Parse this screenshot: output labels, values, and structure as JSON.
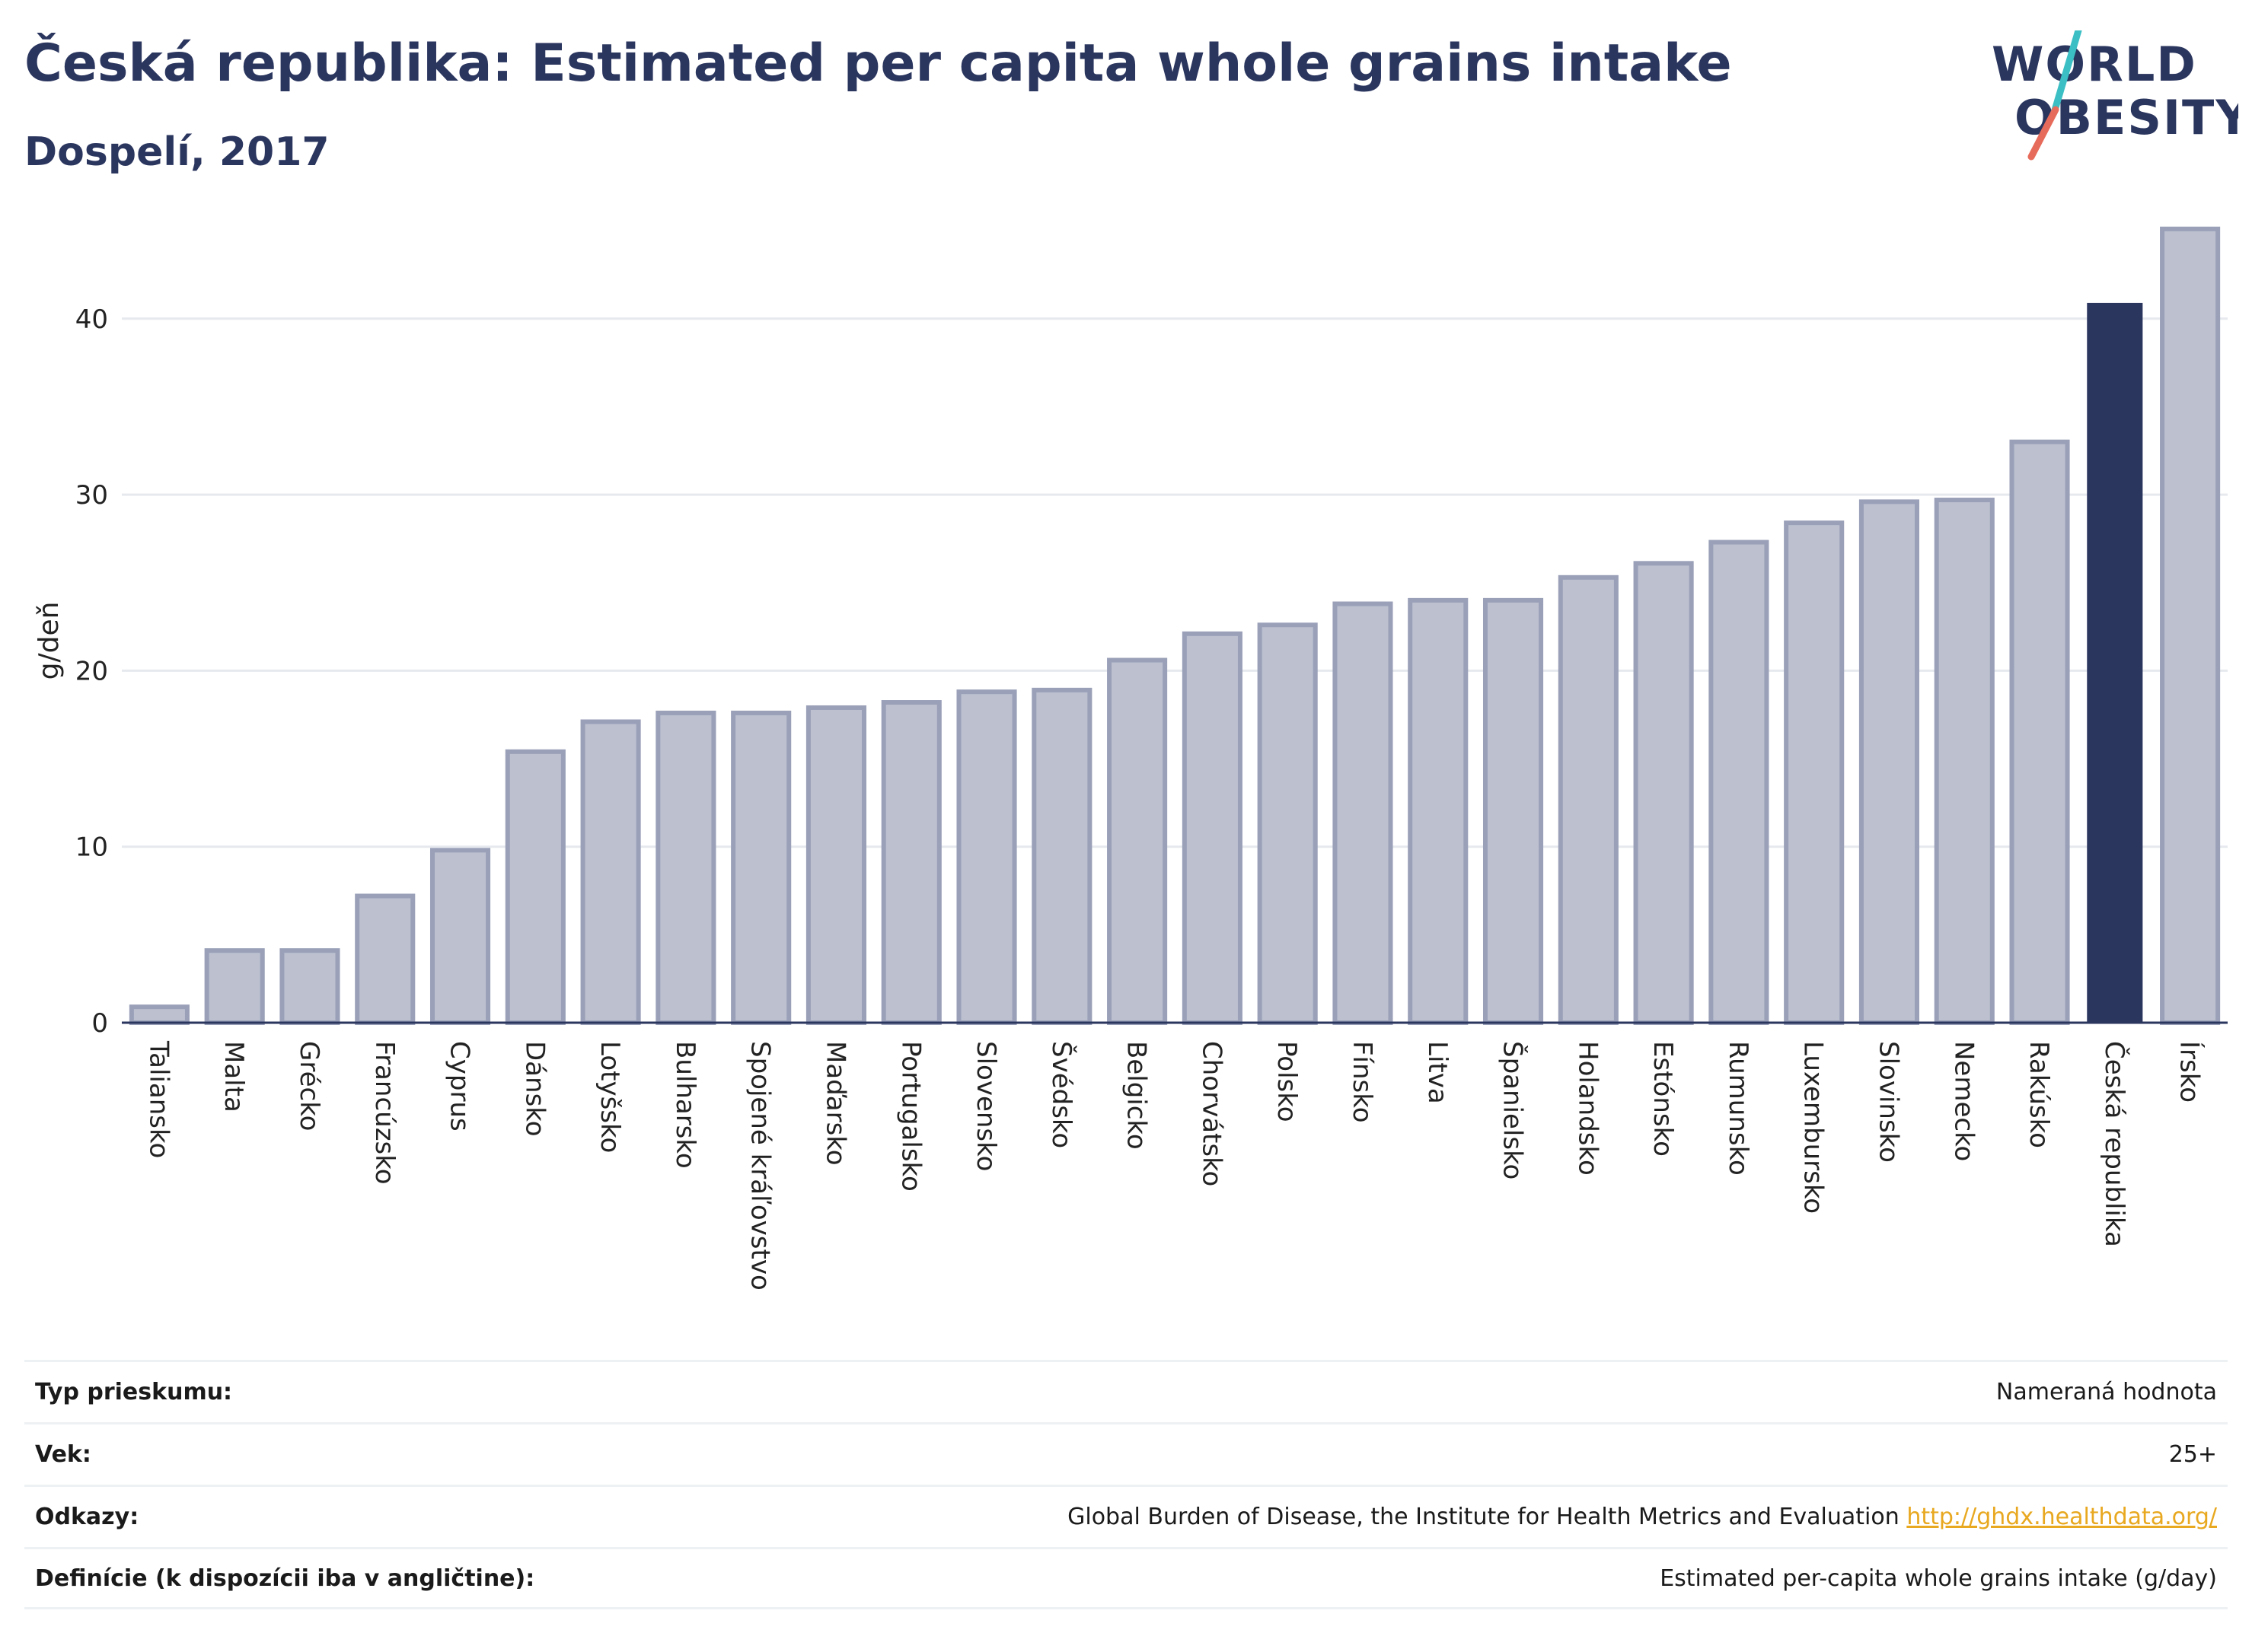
{
  "header": {
    "title": "Česká republika: Estimated per capita whole grains intake",
    "subtitle": "Dospelí, 2017",
    "logo_line1": "WORLD",
    "logo_line2": "OBESITY"
  },
  "colors": {
    "highlight": "#2b365f",
    "bar_fill": "#bcc0cf",
    "bar_stroke": "#9aa0b8",
    "logo_teal": "#3bbfc4",
    "logo_coral": "#e76b5a"
  },
  "chart_data": {
    "type": "bar",
    "ylabel": "g/deň",
    "ylim": [
      0,
      46
    ],
    "yticks": [
      0,
      10,
      20,
      30,
      40
    ],
    "grid": true,
    "highlight": "Česká republika",
    "categories": [
      "Taliansko",
      "Malta",
      "Grécko",
      "Francúzsko",
      "Cyprus",
      "Dánsko",
      "Lotyšsko",
      "Bulharsko",
      "Spojené kráľovstvo",
      "Maďarsko",
      "Portugalsko",
      "Slovensko",
      "Švédsko",
      "Belgicko",
      "Chorvátsko",
      "Polsko",
      "Fínsko",
      "Litva",
      "Španielsko",
      "Holandsko",
      "Estónsko",
      "Rumunsko",
      "Luxembursko",
      "Slovinsko",
      "Nemecko",
      "Rakúsko",
      "Česká republika",
      "Írsko"
    ],
    "values": [
      0.9,
      4.1,
      4.1,
      7.2,
      9.8,
      15.4,
      17.1,
      17.6,
      17.6,
      17.9,
      18.2,
      18.8,
      18.9,
      20.6,
      22.1,
      22.6,
      23.8,
      24.0,
      24.0,
      25.3,
      26.1,
      27.3,
      28.4,
      29.6,
      29.7,
      33.0,
      40.9,
      45.1
    ]
  },
  "footer": {
    "rows": [
      {
        "label": "Typ prieskumu:",
        "value": "Nameraná hodnota"
      },
      {
        "label": "Vek:",
        "value": "25+"
      },
      {
        "label": "Odkazy:",
        "value": "Global Burden of Disease, the Institute for Health Metrics and Evaluation",
        "link": "http://ghdx.healthdata.org/"
      },
      {
        "label": "Definície (k dispozícii iba v angličtine):",
        "value": "Estimated per-capita whole grains intake (g/day)"
      }
    ]
  }
}
